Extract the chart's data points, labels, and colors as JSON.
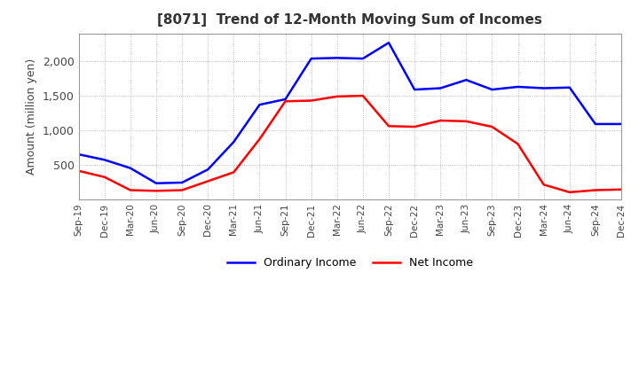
{
  "title": "[8071]  Trend of 12-Month Moving Sum of Incomes",
  "ylabel": "Amount (million yen)",
  "x_labels": [
    "Sep-19",
    "Dec-19",
    "Mar-20",
    "Jun-20",
    "Sep-20",
    "Dec-20",
    "Mar-21",
    "Jun-21",
    "Sep-21",
    "Dec-21",
    "Mar-22",
    "Jun-22",
    "Sep-22",
    "Dec-22",
    "Mar-23",
    "Jun-23",
    "Sep-23",
    "Dec-23",
    "Mar-24",
    "Jun-24",
    "Sep-24",
    "Dec-24"
  ],
  "ordinary_income": [
    650,
    570,
    450,
    230,
    240,
    430,
    830,
    1370,
    1450,
    2040,
    2050,
    2040,
    2270,
    1590,
    1610,
    1730,
    1590,
    1630,
    1610,
    1620,
    1090,
    1090
  ],
  "net_income": [
    410,
    320,
    130,
    120,
    130,
    260,
    390,
    870,
    1420,
    1430,
    1490,
    1500,
    1060,
    1050,
    1140,
    1130,
    1050,
    800,
    210,
    100,
    130,
    140
  ],
  "ordinary_color": "#0000ff",
  "net_color": "#ff0000",
  "ylim_min": 0,
  "ylim_max": 2400,
  "yticks": [
    500,
    1000,
    1500,
    2000
  ],
  "legend_labels": [
    "Ordinary Income",
    "Net Income"
  ],
  "background_color": "#ffffff",
  "grid_color": "#aaaaaa"
}
